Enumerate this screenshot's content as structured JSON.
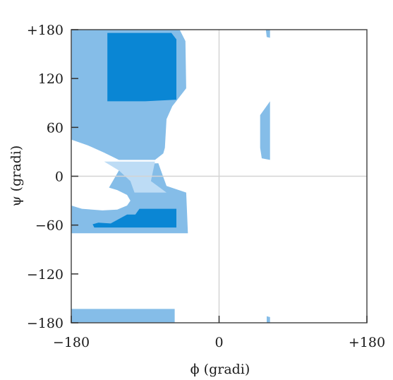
{
  "chart_data": {
    "type": "area",
    "xlabel": "ϕ (gradi)",
    "ylabel": "ψ (gradi)",
    "xlim": [
      -180,
      180
    ],
    "ylim": [
      -180,
      180
    ],
    "x_ticks": [
      {
        "value": -180,
        "label": "−180"
      },
      {
        "value": 0,
        "label": "0"
      },
      {
        "value": 180,
        "label": "+180"
      }
    ],
    "y_ticks": [
      {
        "value": 180,
        "label": "+180"
      },
      {
        "value": 120,
        "label": "120"
      },
      {
        "value": 60,
        "label": "60"
      },
      {
        "value": 0,
        "label": "0"
      },
      {
        "value": -60,
        "label": "−60"
      },
      {
        "value": -120,
        "label": "−120"
      },
      {
        "value": -180,
        "label": "−180"
      }
    ],
    "reference_lines": {
      "x": 0,
      "y": 0
    },
    "colors": {
      "allowed": "#85bde8",
      "favored": "#0a86d4",
      "bridge": "#bddcf5",
      "plot_border": "#4a4a4a",
      "reference_line": "#d4d4d4"
    },
    "regions": [
      {
        "id": "allowed-upper-left",
        "level": "allowed",
        "points": [
          [
            -180,
            180
          ],
          [
            -136,
            180
          ],
          [
            -132,
            181
          ],
          [
            -48,
            181
          ],
          [
            -41,
            166
          ],
          [
            -40,
            108
          ],
          [
            -57,
            86
          ],
          [
            -64,
            70
          ],
          [
            -66,
            35
          ],
          [
            -68,
            28
          ],
          [
            -78,
            20
          ],
          [
            -122,
            20
          ],
          [
            -140,
            29
          ],
          [
            -160,
            38
          ],
          [
            -180,
            45
          ]
        ]
      },
      {
        "id": "allowed-lower-left",
        "level": "allowed",
        "points": [
          [
            -180,
            -36
          ],
          [
            -167,
            -40
          ],
          [
            -142,
            -42
          ],
          [
            -124,
            -41
          ],
          [
            -112,
            -36
          ],
          [
            -108,
            -30
          ],
          [
            -112,
            -23
          ],
          [
            -124,
            -17
          ],
          [
            -134,
            -14
          ],
          [
            -122,
            7
          ],
          [
            -104,
            15
          ],
          [
            -74,
            16
          ],
          [
            -64,
            -12
          ],
          [
            -40,
            -20
          ],
          [
            -38,
            -70
          ],
          [
            -180,
            -70
          ]
        ]
      },
      {
        "id": "allowed-right-upper",
        "level": "allowed",
        "points": [
          [
            50,
            75
          ],
          [
            62,
            92
          ],
          [
            62,
            20
          ],
          [
            52,
            22
          ],
          [
            50,
            35
          ]
        ]
      },
      {
        "id": "allowed-right-top-sliver",
        "level": "allowed",
        "points": [
          [
            57,
            181
          ],
          [
            62,
            181
          ],
          [
            62,
            170
          ],
          [
            58,
            171
          ]
        ]
      },
      {
        "id": "allowed-right-bottom-sliver",
        "level": "allowed",
        "points": [
          [
            58,
            -180
          ],
          [
            62,
            -180
          ],
          [
            62,
            -173
          ],
          [
            58,
            -172
          ]
        ]
      },
      {
        "id": "allowed-bottom-band",
        "level": "allowed",
        "points": [
          [
            -180,
            -180
          ],
          [
            -54,
            -180
          ],
          [
            -54,
            -163
          ],
          [
            -180,
            -163
          ]
        ]
      },
      {
        "id": "favored-upper",
        "level": "favored",
        "points": [
          [
            -136,
            176
          ],
          [
            -136,
            92
          ],
          [
            -90,
            92
          ],
          [
            -52,
            94
          ],
          [
            -52,
            168
          ],
          [
            -58,
            176
          ]
        ]
      },
      {
        "id": "favored-lower",
        "level": "favored",
        "points": [
          [
            -147,
            -57
          ],
          [
            -132,
            -58
          ],
          [
            -112,
            -47
          ],
          [
            -102,
            -47
          ],
          [
            -97,
            -40
          ],
          [
            -52,
            -40
          ],
          [
            -52,
            -63
          ],
          [
            -152,
            -63
          ],
          [
            -154,
            -59
          ]
        ]
      },
      {
        "id": "bridge-region",
        "level": "bridge",
        "points": [
          [
            -140,
            18
          ],
          [
            -78,
            18
          ],
          [
            -83,
            -6
          ],
          [
            -64,
            -20
          ],
          [
            -103,
            -20
          ],
          [
            -108,
            -6
          ],
          [
            -122,
            7
          ]
        ]
      }
    ]
  }
}
